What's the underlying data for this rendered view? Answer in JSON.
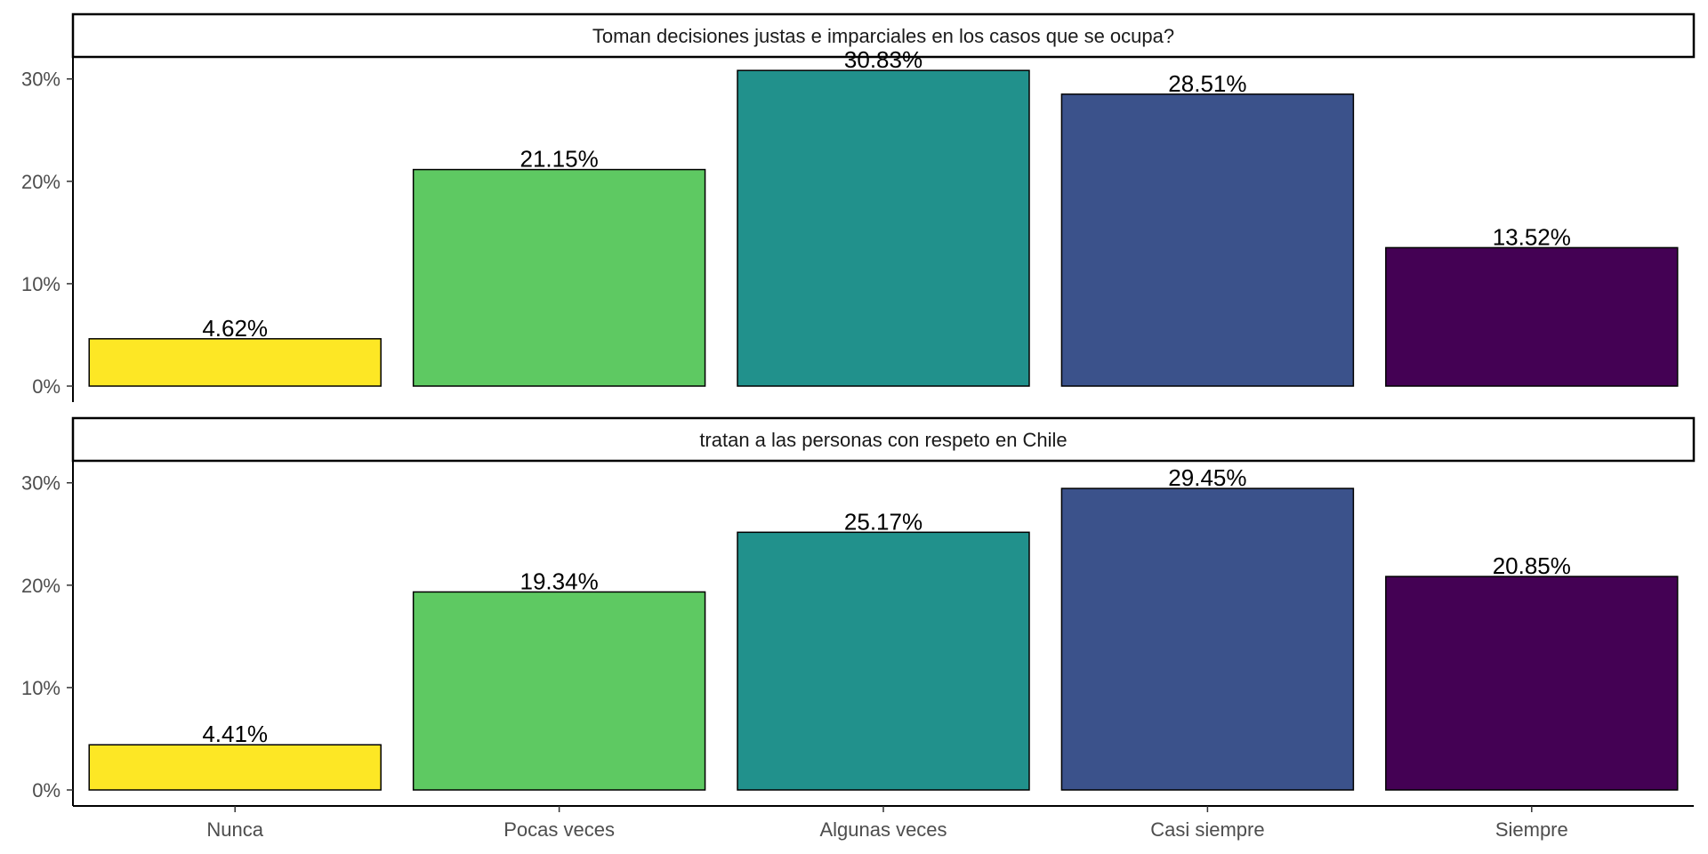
{
  "chart_data": {
    "type": "bar",
    "categories": [
      "Nunca",
      "Pocas veces",
      "Algunas veces",
      "Casi siempre",
      "Siempre"
    ],
    "colors": [
      "#FDE725",
      "#5EC962",
      "#21918C",
      "#3B528B",
      "#440154"
    ],
    "y_axis": {
      "ylim": [
        0,
        0.3215
      ],
      "ticks": [
        0,
        0.1,
        0.2,
        0.3
      ],
      "tick_labels": [
        "0%",
        "10%",
        "20%",
        "30%"
      ]
    },
    "grid": false,
    "facets": [
      {
        "title": "Toman decisiones justas e imparciales en los casos que se ocupa?",
        "values": [
          0.0462,
          0.2115,
          0.3083,
          0.2851,
          0.1352
        ],
        "labels": [
          "4.62%",
          "21.15%",
          "30.83%",
          "28.51%",
          "13.52%"
        ]
      },
      {
        "title": "tratan a las personas con respeto en Chile",
        "values": [
          0.0441,
          0.1934,
          0.2517,
          0.2945,
          0.2085
        ],
        "labels": [
          "4.41%",
          "19.34%",
          "25.17%",
          "29.45%",
          "20.85%"
        ]
      }
    ]
  }
}
